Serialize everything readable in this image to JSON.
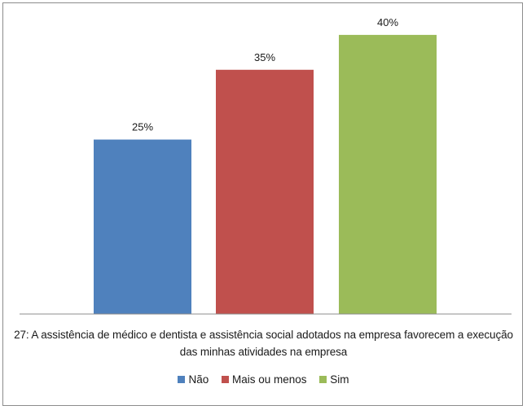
{
  "chart_data": {
    "type": "bar",
    "categories": [
      "Não",
      "Mais ou menos",
      "Sim"
    ],
    "values": [
      25,
      35,
      40
    ],
    "value_labels": [
      "25%",
      "35%",
      "40%"
    ],
    "colors": [
      "#4f81bd",
      "#c0504d",
      "#9bbb59"
    ],
    "ylim": [
      0,
      45
    ],
    "title": "",
    "xlabel": "27: A assistência de médico e dentista e assistência social adotados na empresa favorecem a execução das minhas atividades na empresa",
    "ylabel": "",
    "grid": false,
    "legend_position": "bottom"
  }
}
